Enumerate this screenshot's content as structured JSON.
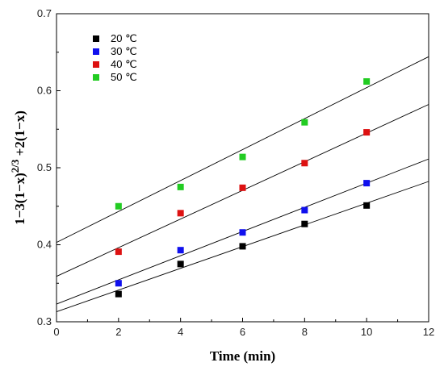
{
  "chart_data": {
    "type": "scatter",
    "title": "",
    "xlabel": "Time (min)",
    "ylabel": "1−3(1−x)^{2/3} +2(1−x)",
    "xlim": [
      0,
      12
    ],
    "ylim": [
      0.3,
      0.7
    ],
    "xticks": [
      "0",
      "2",
      "4",
      "6",
      "8",
      "10",
      "12"
    ],
    "yticks": [
      "0.3",
      "0.4",
      "0.5",
      "0.6",
      "0.7"
    ],
    "grid": false,
    "legend_position": "top-left",
    "x": [
      2,
      4,
      6,
      8,
      10
    ],
    "series": [
      {
        "name": "20 ℃",
        "color": "#000000",
        "values": [
          0.336,
          0.375,
          0.398,
          0.427,
          0.451
        ],
        "fit": [
          0.313,
          0.0141
        ]
      },
      {
        "name": "30 ℃",
        "color": "#1010ee",
        "values": [
          0.35,
          0.393,
          0.416,
          0.445,
          0.48
        ],
        "fit": [
          0.323,
          0.0157
        ]
      },
      {
        "name": "40 ℃",
        "color": "#dd1111",
        "values": [
          0.391,
          0.441,
          0.474,
          0.506,
          0.546
        ],
        "fit": [
          0.359,
          0.0186
        ]
      },
      {
        "name": "50 ℃",
        "color": "#22cc22",
        "values": [
          0.45,
          0.475,
          0.514,
          0.559,
          0.612
        ],
        "fit": [
          0.403,
          0.0201
        ]
      }
    ]
  }
}
